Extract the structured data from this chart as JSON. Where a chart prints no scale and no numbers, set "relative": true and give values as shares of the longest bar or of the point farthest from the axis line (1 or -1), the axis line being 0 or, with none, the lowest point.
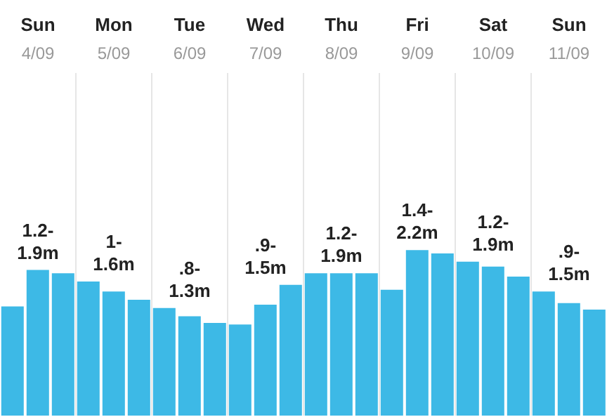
{
  "chart_data": {
    "type": "bar",
    "relative": true,
    "color": "#3db9e6",
    "grid": "x",
    "categories": [
      null,
      "Sun 4/09",
      null,
      null,
      "Mon 5/09",
      null,
      null,
      "Tue 6/09",
      null,
      null,
      "Wed 7/09",
      null,
      null,
      "Thu 8/09",
      null,
      null,
      "Fri 9/09",
      null,
      null,
      "Sat 10/09",
      null,
      null,
      "Sun 11/09",
      null
    ],
    "values": [
      0.66,
      0.88,
      0.86,
      0.81,
      0.75,
      0.7,
      0.65,
      0.6,
      0.56,
      0.55,
      0.67,
      0.79,
      0.86,
      0.86,
      0.86,
      0.76,
      1,
      0.98,
      0.93,
      0.9,
      0.84,
      0.75,
      0.68,
      0.64
    ],
    "annotations": [
      "1.2-1.9m",
      "1-1.6m",
      ".8-1.3m",
      ".9-1.5m",
      "1.2-1.9m",
      "1.4-2.2m",
      "1.2-1.9m",
      ".9-1.5m"
    ]
  }
}
